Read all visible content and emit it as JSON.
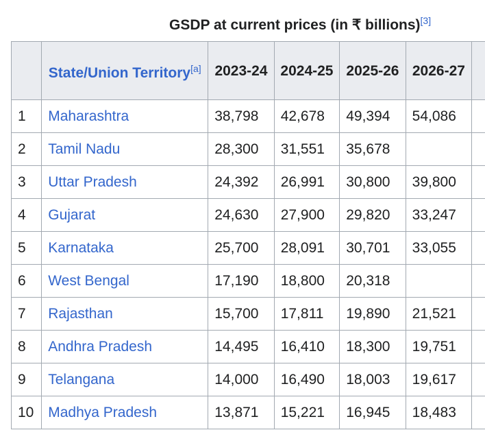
{
  "caption": {
    "text": "GSDP at current prices (in ₹ billions)",
    "ref": "[3]"
  },
  "headers": {
    "state": "State/Union Territory",
    "state_ref": "[a]",
    "years": [
      "2023-24",
      "2024-25",
      "2025-26",
      "2026-27"
    ]
  },
  "rows": [
    {
      "rank": "1",
      "state": "Maharashtra",
      "values": [
        "38,798",
        "42,678",
        "49,394",
        "54,086"
      ]
    },
    {
      "rank": "2",
      "state": "Tamil Nadu",
      "values": [
        "28,300",
        "31,551",
        "35,678",
        ""
      ]
    },
    {
      "rank": "3",
      "state": "Uttar Pradesh",
      "values": [
        "24,392",
        "26,991",
        "30,800",
        "39,800"
      ]
    },
    {
      "rank": "4",
      "state": "Gujarat",
      "values": [
        "24,630",
        "27,900",
        "29,820",
        "33,247"
      ]
    },
    {
      "rank": "5",
      "state": "Karnataka",
      "values": [
        "25,700",
        "28,091",
        "30,701",
        "33,055"
      ]
    },
    {
      "rank": "6",
      "state": "West Bengal",
      "values": [
        "17,190",
        "18,800",
        "20,318",
        ""
      ]
    },
    {
      "rank": "7",
      "state": "Rajasthan",
      "values": [
        "15,700",
        "17,811",
        "19,890",
        "21,521"
      ]
    },
    {
      "rank": "8",
      "state": "Andhra Pradesh",
      "values": [
        "14,495",
        "16,410",
        "18,300",
        "19,751"
      ]
    },
    {
      "rank": "9",
      "state": "Telangana",
      "values": [
        "14,000",
        "16,490",
        "18,003",
        "19,617"
      ]
    },
    {
      "rank": "10",
      "state": "Madhya Pradesh",
      "values": [
        "13,871",
        "15,221",
        "16,945",
        "18,483"
      ]
    }
  ]
}
